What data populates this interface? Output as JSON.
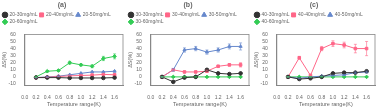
{
  "chart_data": [
    {
      "type": "line",
      "title": "(a)",
      "x_label": "Temperature range(K)",
      "y_label": "ΔS(%)",
      "x": [
        0.2,
        0.4,
        0.6,
        0.8,
        1.0,
        1.2,
        1.4,
        1.6
      ],
      "xlim": [
        0.0,
        1.75
      ],
      "xticks": [
        {
          "value": 0,
          "label": "0.0"
        },
        0.2,
        0.4,
        0.6,
        0.8,
        {
          "value": 1,
          "label": "1.0"
        },
        1.2,
        1.4,
        1.6
      ],
      "ylim": [
        -12,
        60
      ],
      "yticks": [
        -10,
        0,
        10,
        20,
        30,
        40,
        50,
        60
      ],
      "grid": false,
      "legend": "upper left",
      "series": [
        {
          "name": "20-30mg/mL",
          "color": "#333333",
          "marker": "circle",
          "values": [
            -1,
            -1,
            -1,
            -1.5,
            -1.5,
            -1.5,
            -1.5,
            -1
          ],
          "yerr": [
            0.4,
            0.4,
            0.4,
            0.4,
            0.4,
            0.4,
            0.4,
            0.6
          ]
        },
        {
          "name": "20-40mg/mL",
          "color": "#ff6688",
          "marker": "square",
          "values": [
            -1,
            -0.5,
            0.5,
            1.5,
            2,
            2.5,
            3.5,
            3
          ],
          "yerr": [
            0.4,
            0.4,
            0.4,
            0.4,
            0.4,
            0.4,
            0.5,
            0.5
          ]
        },
        {
          "name": "20-50mg/mL",
          "color": "#6688cc",
          "marker": "triangle",
          "values": [
            -1,
            0,
            1,
            3,
            5,
            7,
            7,
            8
          ],
          "yerr": [
            0.4,
            0.4,
            0.4,
            0.4,
            0.5,
            0.5,
            0.5,
            0.8
          ]
        },
        {
          "name": "20-60mg/mL",
          "color": "#33cc55",
          "marker": "diamond",
          "values": [
            0,
            8,
            9,
            20,
            17,
            15,
            26,
            29
          ],
          "yerr": [
            0.5,
            1.0,
            1.2,
            2.0,
            1.5,
            2.0,
            3.0,
            3.5
          ]
        }
      ]
    },
    {
      "type": "line",
      "title": "(b)",
      "x_label": "Temperature range(K)",
      "y_label": "ΔS(%)",
      "x": [
        0.2,
        0.4,
        0.6,
        0.8,
        1.0,
        1.2,
        1.4,
        1.6
      ],
      "xlim": [
        0.0,
        1.75
      ],
      "xticks": [
        {
          "value": 0,
          "label": "0.0"
        },
        0.2,
        0.4,
        0.6,
        0.8,
        {
          "value": 1,
          "label": "1.0"
        },
        1.2,
        1.4,
        1.6
      ],
      "ylim": [
        -12,
        60
      ],
      "yticks": [
        -10,
        0,
        10,
        20,
        30,
        40,
        50,
        60
      ],
      "grid": false,
      "legend": "upper left",
      "series": [
        {
          "name": "30-30mg/mL",
          "color": "#333333",
          "marker": "circle",
          "values": [
            0,
            -7,
            -1,
            0,
            10,
            5,
            4,
            5
          ],
          "yerr": [
            0.4,
            1.0,
            0.5,
            0.5,
            1.5,
            1.0,
            0.5,
            0.5
          ]
        },
        {
          "name": "30-40mg/mL",
          "color": "#ff6688",
          "marker": "square",
          "values": [
            0,
            10,
            7,
            7,
            8,
            15,
            17,
            17
          ],
          "yerr": [
            0.4,
            1.0,
            1.0,
            1.2,
            1.5,
            1.5,
            1.5,
            3.0
          ]
        },
        {
          "name": "30-50mg/mL",
          "color": "#6688cc",
          "marker": "triangle",
          "values": [
            0,
            10,
            38,
            40,
            35,
            38,
            43,
            43
          ],
          "yerr": [
            0.4,
            2.0,
            3.0,
            3.0,
            3.0,
            3.0,
            3.5,
            5.0
          ]
        },
        {
          "name": "30-60mg/mL",
          "color": "#33cc55",
          "marker": "diamond",
          "values": [
            0,
            0,
            0,
            0,
            0,
            0,
            0,
            0
          ],
          "yerr": [
            0.3,
            0.3,
            0.3,
            0.3,
            0.3,
            0.3,
            0.3,
            0.3
          ]
        }
      ]
    },
    {
      "type": "line",
      "title": "(c)",
      "x_label": "Temperature range(K)",
      "y_label": "ΔS(%)",
      "x": [
        0.2,
        0.4,
        0.6,
        0.8,
        1.0,
        1.2,
        1.4,
        1.6
      ],
      "xlim": [
        0.0,
        1.75
      ],
      "xticks": [
        {
          "value": 0,
          "label": "0.0"
        },
        0.2,
        0.4,
        0.6,
        0.8,
        {
          "value": 1,
          "label": "1.0"
        },
        1.2,
        1.4,
        1.6
      ],
      "ylim": [
        -12,
        60
      ],
      "yticks": [
        -10,
        0,
        10,
        20,
        30,
        40,
        50,
        60
      ],
      "grid": false,
      "legend": "upper left",
      "series": [
        {
          "name": "40-30mg/mL",
          "color": "#333333",
          "marker": "circle",
          "values": [
            0,
            -3,
            -2,
            0,
            5,
            6,
            6,
            8
          ],
          "yerr": [
            0.3,
            0.5,
            0.5,
            0.5,
            1.0,
            1.0,
            1.0,
            1.0
          ]
        },
        {
          "name": "40-40mg/mL",
          "color": "#ff6688",
          "marker": "square",
          "values": [
            0,
            27,
            2,
            40,
            47,
            45,
            40,
            40
          ],
          "yerr": [
            0.3,
            2.0,
            2.0,
            3.0,
            4.0,
            4.0,
            6.0,
            10.0
          ]
        },
        {
          "name": "40-50mg/mL",
          "color": "#6688cc",
          "marker": "triangle",
          "values": [
            0,
            -2,
            0,
            1,
            2,
            3,
            6,
            7
          ],
          "yerr": [
            0.3,
            0.5,
            0.3,
            0.5,
            0.5,
            0.5,
            1.0,
            1.2
          ]
        },
        {
          "name": "40-60mg/mL",
          "color": "#33cc55",
          "marker": "diamond",
          "values": [
            0,
            0,
            0,
            0,
            0,
            0,
            0,
            0
          ],
          "yerr": [
            0.3,
            0.3,
            0.3,
            0.3,
            0.3,
            0.3,
            0.3,
            0.3
          ]
        }
      ]
    }
  ]
}
